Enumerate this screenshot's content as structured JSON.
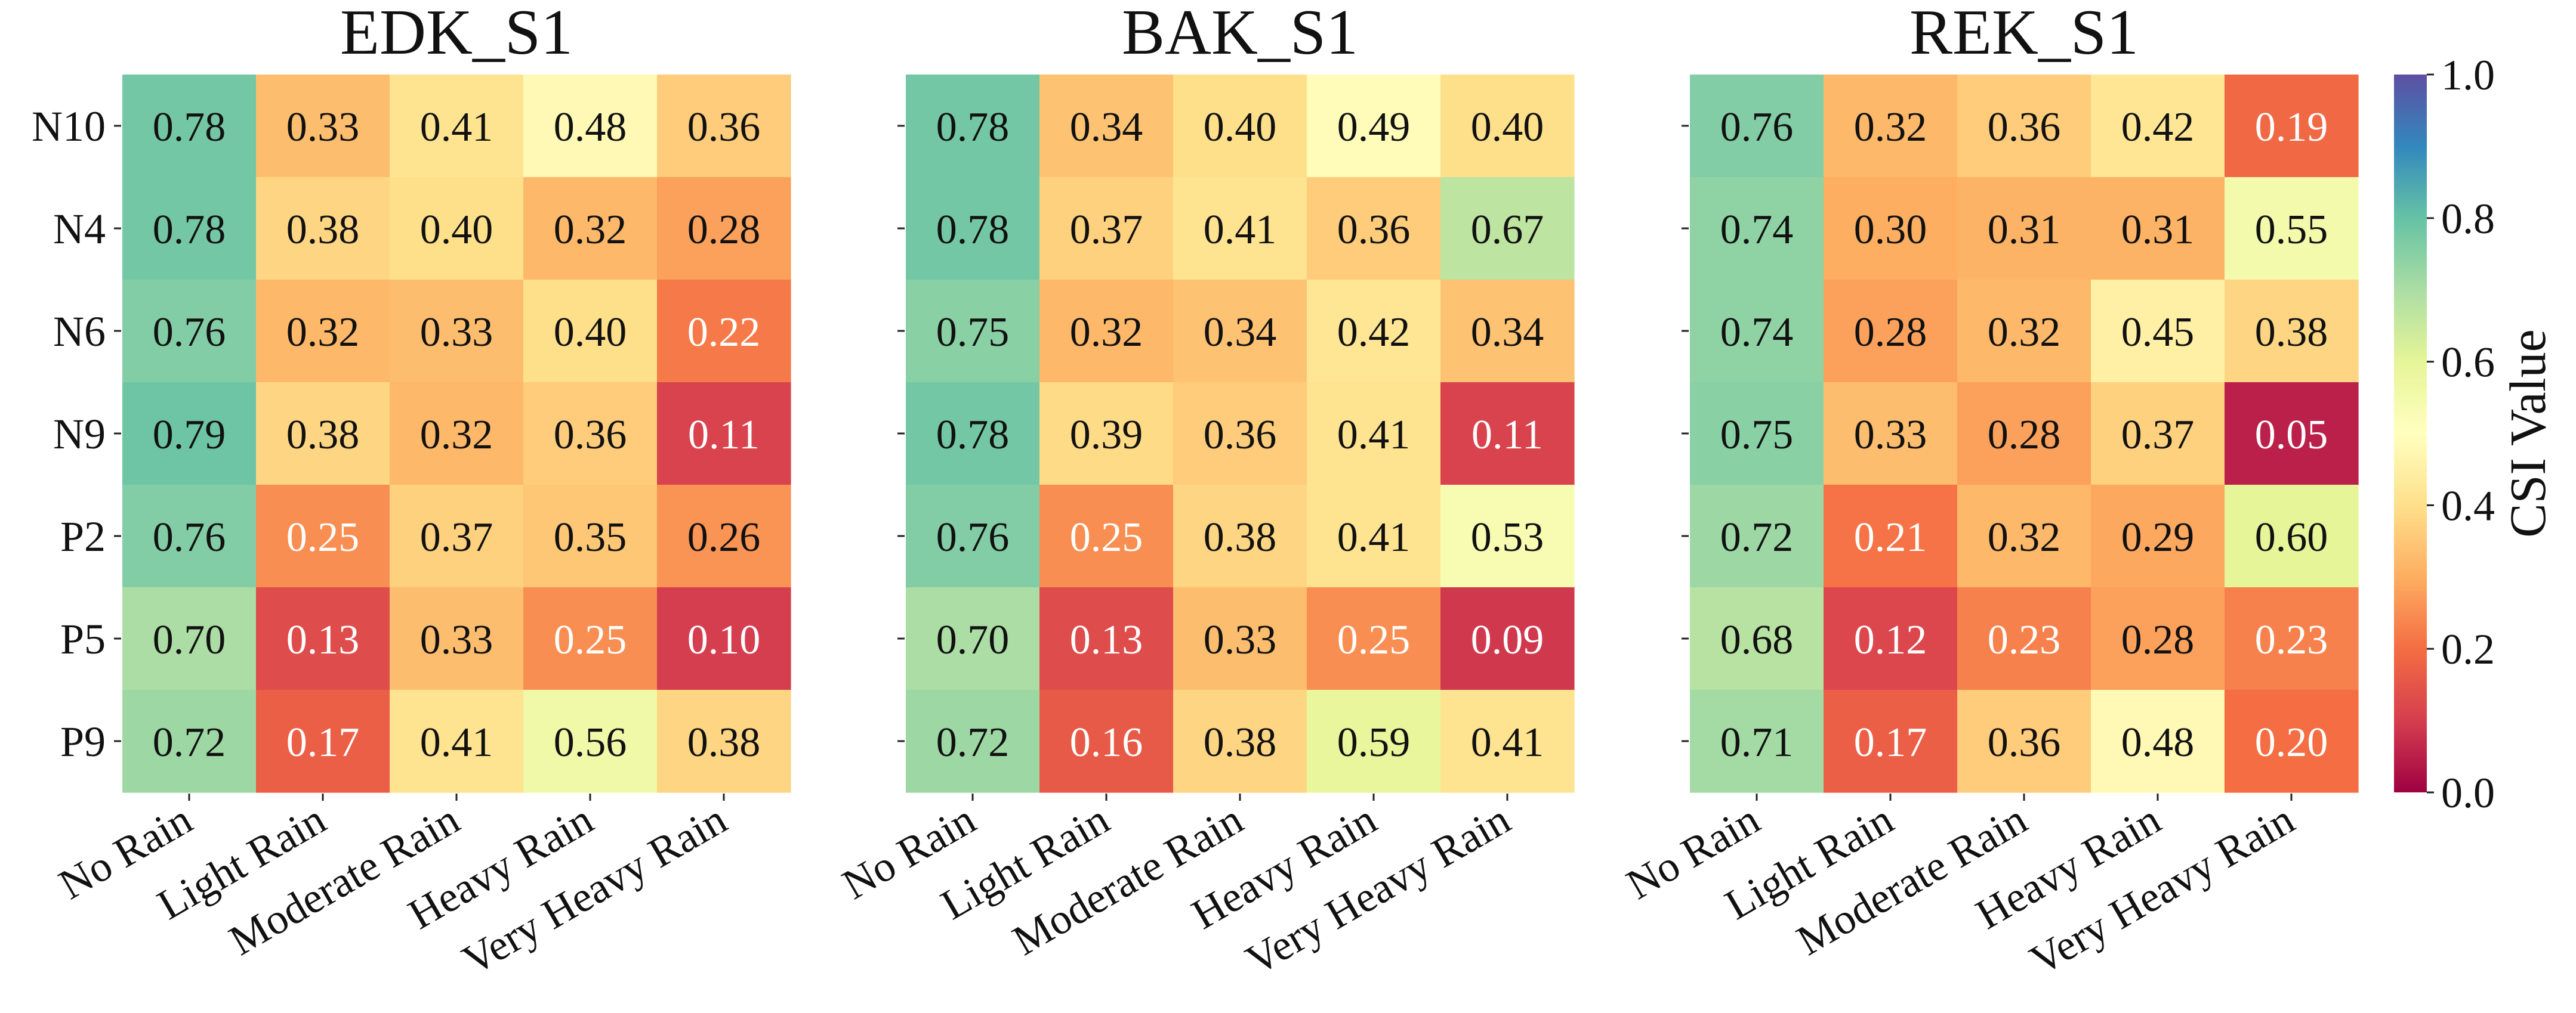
{
  "chart_data": {
    "type": "heatmap",
    "rows": [
      "N10",
      "N4",
      "N6",
      "N9",
      "P2",
      "P5",
      "P9"
    ],
    "columns": [
      "No Rain",
      "Light Rain",
      "Moderate Rain",
      "Heavy Rain",
      "Very Heavy Rain"
    ],
    "colormap": "Spectral",
    "vmin": 0.0,
    "vmax": 1.0,
    "colorbar": {
      "label": "CSI Value",
      "ticks": [
        "0.0",
        "0.2",
        "0.4",
        "0.6",
        "0.8",
        "1.0"
      ]
    },
    "panels": [
      {
        "title": "EDK_S1",
        "values": [
          [
            0.78,
            0.33,
            0.41,
            0.48,
            0.36
          ],
          [
            0.78,
            0.38,
            0.4,
            0.32,
            0.28
          ],
          [
            0.76,
            0.32,
            0.33,
            0.4,
            0.22
          ],
          [
            0.79,
            0.38,
            0.32,
            0.36,
            0.11
          ],
          [
            0.76,
            0.25,
            0.37,
            0.35,
            0.26
          ],
          [
            0.7,
            0.13,
            0.33,
            0.25,
            0.1
          ],
          [
            0.72,
            0.17,
            0.41,
            0.56,
            0.38
          ]
        ]
      },
      {
        "title": "BAK_S1",
        "values": [
          [
            0.78,
            0.34,
            0.4,
            0.49,
            0.4
          ],
          [
            0.78,
            0.37,
            0.41,
            0.36,
            0.67
          ],
          [
            0.75,
            0.32,
            0.34,
            0.42,
            0.34
          ],
          [
            0.78,
            0.39,
            0.36,
            0.41,
            0.11
          ],
          [
            0.76,
            0.25,
            0.38,
            0.41,
            0.53
          ],
          [
            0.7,
            0.13,
            0.33,
            0.25,
            0.09
          ],
          [
            0.72,
            0.16,
            0.38,
            0.59,
            0.41
          ]
        ]
      },
      {
        "title": "REK_S1",
        "values": [
          [
            0.76,
            0.32,
            0.36,
            0.42,
            0.19
          ],
          [
            0.74,
            0.3,
            0.31,
            0.31,
            0.55
          ],
          [
            0.74,
            0.28,
            0.32,
            0.45,
            0.38
          ],
          [
            0.75,
            0.33,
            0.28,
            0.37,
            0.05
          ],
          [
            0.72,
            0.21,
            0.32,
            0.29,
            0.6
          ],
          [
            0.68,
            0.12,
            0.23,
            0.28,
            0.23
          ],
          [
            0.71,
            0.17,
            0.36,
            0.48,
            0.2
          ]
        ]
      }
    ]
  }
}
